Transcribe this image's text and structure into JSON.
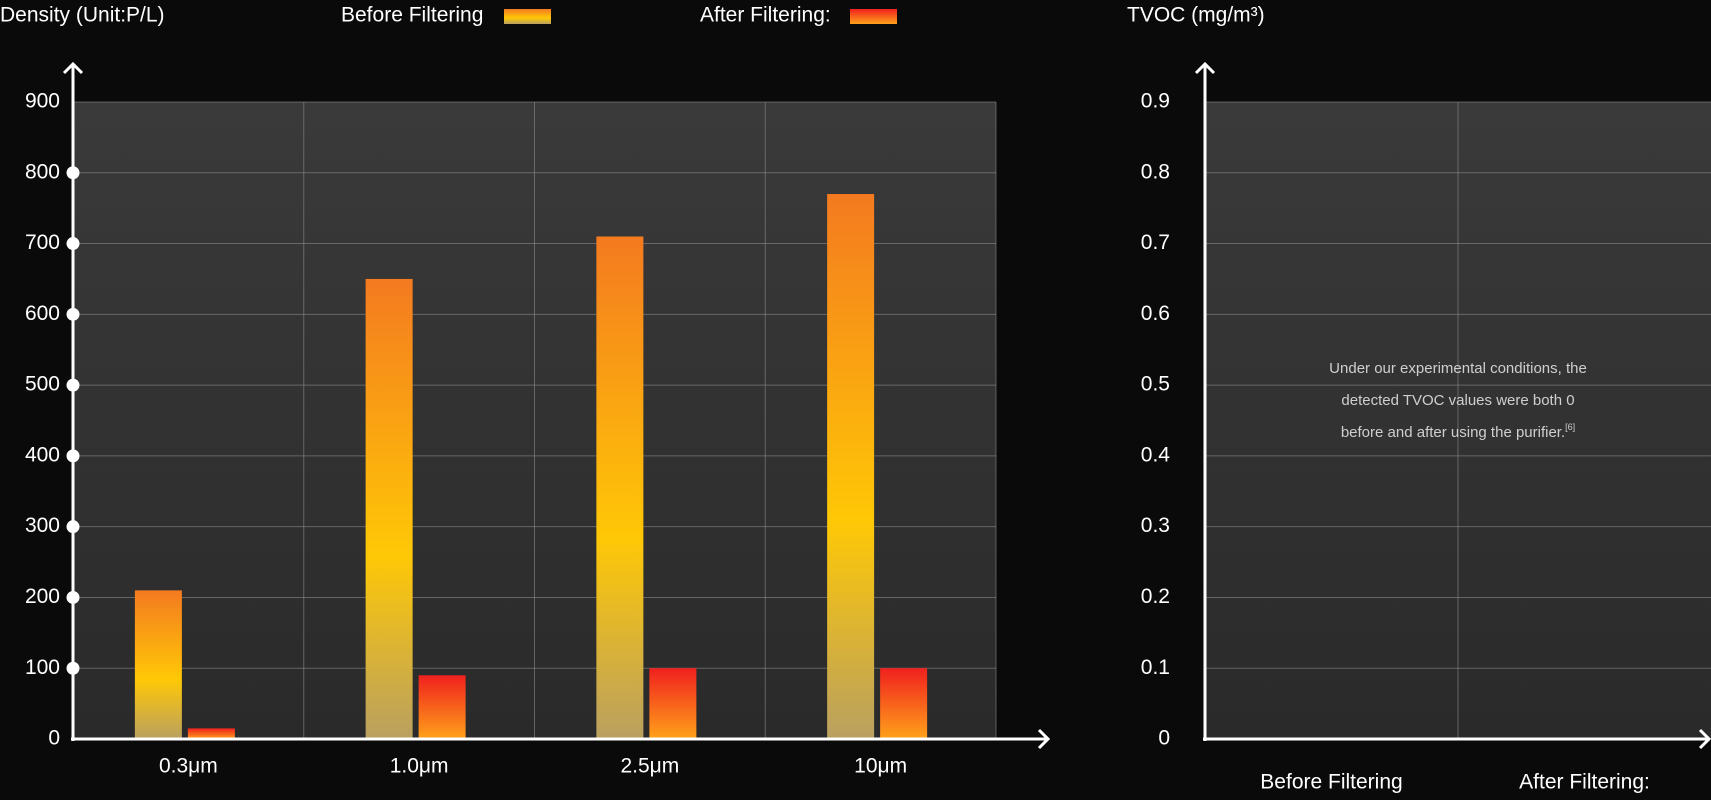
{
  "chart_data": [
    {
      "type": "bar",
      "title": "Density (Unit:P/L)",
      "categories": [
        "0.3μm",
        "1.0μm",
        "2.5μm",
        "10μm"
      ],
      "series": [
        {
          "name": "Before Filtering",
          "color": "#f7931e",
          "values": [
            210,
            650,
            710,
            770
          ]
        },
        {
          "name": "After Filtering:",
          "color": "#f03c1c",
          "values": [
            15,
            90,
            100,
            100
          ]
        }
      ],
      "ylim": [
        0,
        900
      ],
      "yticks": [
        0,
        100,
        200,
        300,
        400,
        500,
        600,
        700,
        800,
        900
      ],
      "grid": true
    },
    {
      "type": "bar",
      "title": "TVOC (mg/m³)",
      "categories": [
        "Before Filtering",
        "After Filtering:"
      ],
      "values": [
        0,
        0
      ],
      "ylim": [
        0,
        0.9
      ],
      "yticks": [
        0,
        0.1,
        0.2,
        0.3,
        0.4,
        0.5,
        0.6,
        0.7,
        0.8,
        0.9
      ],
      "grid": true,
      "annotation": [
        "Under our experimental conditions, the",
        "detected TVOC values were both 0",
        "before and after using the purifier."
      ],
      "annotation_ref": "[6]"
    }
  ]
}
